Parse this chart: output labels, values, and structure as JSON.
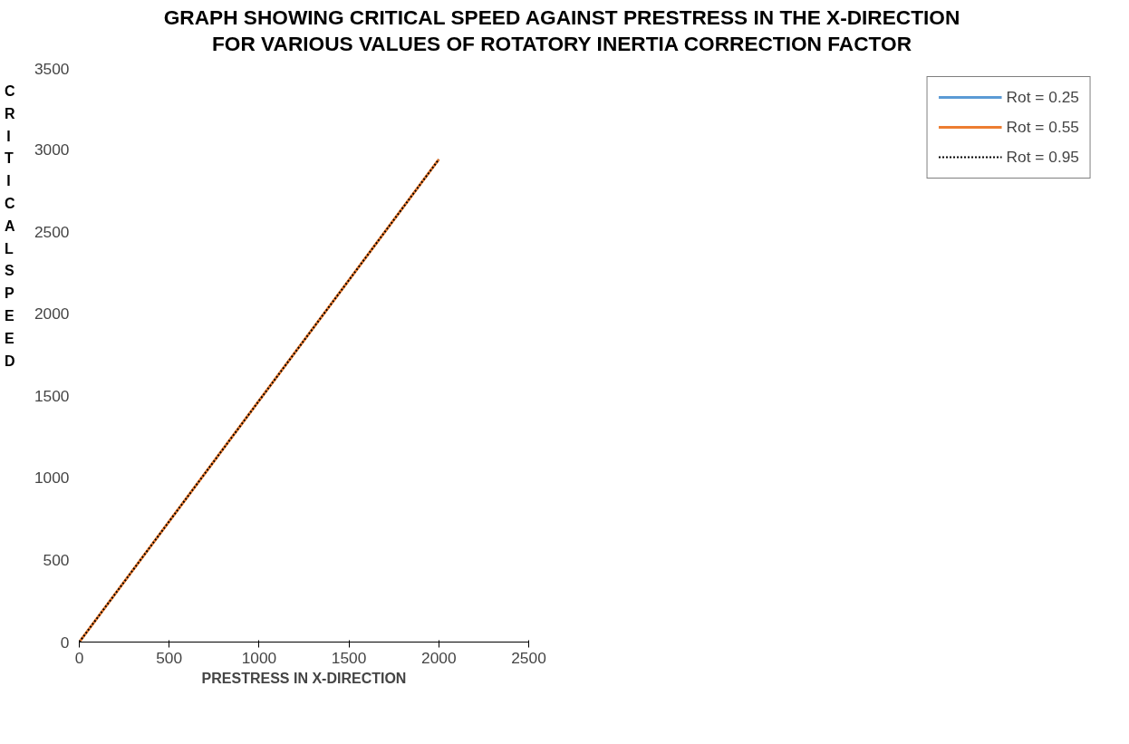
{
  "chart_data": {
    "type": "line",
    "title": "GRAPH SHOWING CRITICAL SPEED AGAINST PRESTRESS IN THE X-DIRECTION FOR VARIOUS VALUES OF ROTATORY INERTIA CORRECTION FACTOR",
    "xlabel": "PRESTRESS IN X-DIRECTION",
    "ylabel": "CRITICAL SPEED",
    "x": [
      0,
      500,
      1000,
      1500,
      2000
    ],
    "series": [
      {
        "name": "Rot = 0.25",
        "color": "#5b9bd5",
        "values": [
          null,
          null,
          null,
          null,
          null
        ],
        "line_style": "solid"
      },
      {
        "name": "Rot = 0.55",
        "color": "#ed7d31",
        "values": [
          0,
          735,
          1470,
          2205,
          2940
        ],
        "line_style": "solid"
      },
      {
        "name": "Rot = 0.95",
        "color": "#000000",
        "values": [
          0,
          735,
          1470,
          2205,
          2940
        ],
        "line_style": "dotted"
      }
    ],
    "xlim": [
      0,
      2500
    ],
    "xticks": [
      0,
      500,
      1000,
      1500,
      2000,
      2500
    ],
    "ylim": [
      0,
      3500
    ],
    "yticks": [
      0,
      500,
      1000,
      1500,
      2000,
      2500,
      3000,
      3500
    ],
    "grid": false,
    "legend": "right",
    "marker": "none"
  }
}
